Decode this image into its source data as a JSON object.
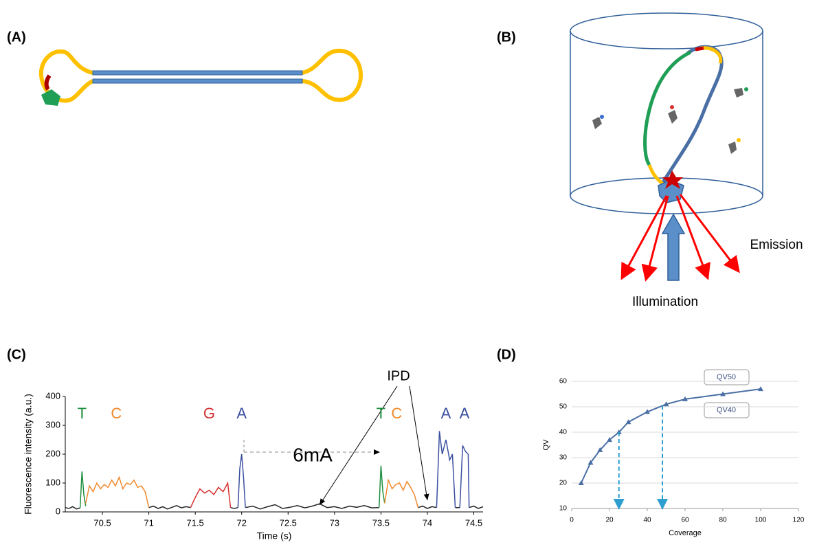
{
  "panels": [
    "(A)",
    "(B)",
    "(C)",
    "(D)"
  ],
  "diagram_b": {
    "emission": "Emission",
    "illumination": "Illumination"
  },
  "chart_data": [
    {
      "type": "line",
      "xlabel": "Time (s)",
      "ylabel": "Fluorescence intensity (a.u.)",
      "xlim": [
        70.1,
        74.6
      ],
      "xticks": [
        70.5,
        71.0,
        71.5,
        72.0,
        72.5,
        73.0,
        73.5,
        74.0,
        74.5
      ],
      "ylim": [
        0,
        400
      ],
      "yticks": [
        0,
        100,
        200,
        300,
        400
      ],
      "grid": false,
      "annotations": [
        "6mA",
        "IPD"
      ],
      "base_labels": [
        {
          "text": "T",
          "x": 70.28,
          "color": "#1e8f3e"
        },
        {
          "text": "C",
          "x": 70.65,
          "color": "#f0892c"
        },
        {
          "text": "G",
          "x": 71.65,
          "color": "#d62f2f"
        },
        {
          "text": "A",
          "x": 72.0,
          "color": "#3a4fa0"
        },
        {
          "text": "T",
          "x": 73.5,
          "color": "#1e8f3e"
        },
        {
          "text": "C",
          "x": 73.67,
          "color": "#f0892c"
        },
        {
          "text": "A",
          "x": 74.2,
          "color": "#3a4fa0"
        },
        {
          "text": "A",
          "x": 74.4,
          "color": "#3a4fa0"
        }
      ],
      "series": [
        {
          "color": "#222222",
          "x": [
            70.1,
            70.14,
            70.18,
            70.22,
            70.26,
            null,
            71.0,
            71.05,
            71.1,
            71.15,
            71.2,
            71.25,
            71.3,
            71.35,
            71.4,
            71.45,
            null,
            71.88,
            71.92,
            71.96,
            null,
            72.04,
            72.12,
            72.2,
            72.28,
            72.36,
            72.44,
            72.52,
            72.6,
            72.68,
            72.76,
            72.84,
            72.92,
            73.0,
            73.08,
            73.16,
            73.24,
            73.32,
            73.4,
            73.48,
            null,
            73.9,
            73.95,
            74.0,
            74.05,
            74.1,
            null,
            74.3,
            74.35,
            null,
            74.45,
            74.5,
            74.55,
            74.6
          ],
          "values": [
            15,
            12,
            18,
            10,
            14,
            null,
            15,
            20,
            12,
            18,
            10,
            16,
            22,
            14,
            18,
            15,
            null,
            15,
            12,
            15,
            null,
            15,
            20,
            10,
            18,
            25,
            12,
            16,
            22,
            14,
            20,
            28,
            15,
            18,
            12,
            20,
            16,
            22,
            14,
            15,
            null,
            15,
            20,
            12,
            18,
            15,
            null,
            15,
            15,
            null,
            15,
            20,
            12,
            18
          ]
        },
        {
          "color": "#1e8f3e",
          "x": [
            70.26,
            70.28,
            70.3,
            70.32,
            null,
            73.48,
            73.5,
            73.52,
            73.54
          ],
          "values": [
            14,
            140,
            60,
            20,
            null,
            15,
            160,
            70,
            30
          ]
        },
        {
          "color": "#f0892c",
          "x": [
            70.32,
            70.36,
            70.4,
            70.44,
            70.48,
            70.52,
            70.56,
            70.6,
            70.64,
            70.68,
            70.72,
            70.76,
            70.8,
            70.84,
            70.88,
            70.92,
            70.96,
            71.0,
            null,
            73.54,
            73.58,
            73.62,
            73.66,
            73.7,
            73.74,
            73.78,
            73.82,
            73.86,
            73.9
          ],
          "values": [
            30,
            90,
            70,
            100,
            80,
            95,
            85,
            110,
            90,
            120,
            80,
            100,
            95,
            110,
            85,
            90,
            70,
            15,
            null,
            30,
            110,
            80,
            95,
            100,
            75,
            105,
            85,
            60,
            15
          ]
        },
        {
          "color": "#d62f2f",
          "x": [
            71.45,
            71.5,
            71.55,
            71.6,
            71.65,
            71.7,
            71.75,
            71.8,
            71.85,
            71.88
          ],
          "values": [
            15,
            50,
            80,
            65,
            75,
            60,
            85,
            70,
            100,
            15
          ]
        },
        {
          "color": "#3a4fa0",
          "x": [
            71.96,
            71.98,
            72.0,
            72.02,
            72.04,
            null,
            74.1,
            74.13,
            74.16,
            74.2,
            74.24,
            74.27,
            74.3,
            null,
            74.35,
            74.38,
            74.41,
            74.44,
            74.45
          ],
          "values": [
            15,
            150,
            200,
            120,
            15,
            null,
            15,
            280,
            200,
            250,
            180,
            200,
            15,
            null,
            15,
            230,
            210,
            200,
            15
          ]
        }
      ]
    },
    {
      "type": "line",
      "xlabel": "Coverage",
      "ylabel": "QV",
      "xlim": [
        0,
        120
      ],
      "xticks": [
        0,
        20,
        40,
        60,
        80,
        100,
        120
      ],
      "ylim": [
        10,
        60
      ],
      "yticks": [
        10,
        20,
        30,
        40,
        50,
        60
      ],
      "grid": true,
      "annotations": [
        "QV50",
        "QV40"
      ],
      "guide_x": [
        25,
        48
      ],
      "series": [
        {
          "color": "#4a6fa5",
          "marker": "triangle",
          "x": [
            5,
            10,
            15,
            20,
            25,
            30,
            40,
            50,
            60,
            80,
            100
          ],
          "values": [
            20,
            28,
            33,
            37,
            40,
            44,
            48,
            51,
            53,
            55,
            57
          ]
        }
      ]
    }
  ]
}
